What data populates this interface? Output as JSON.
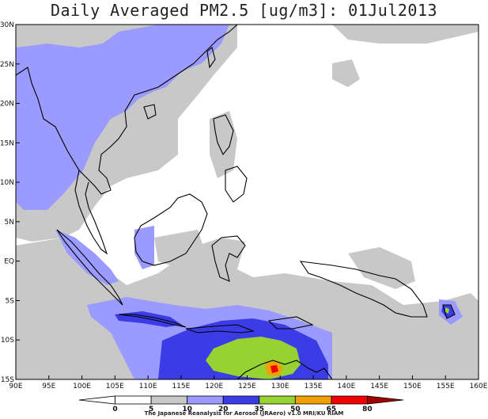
{
  "title": "Daily Averaged PM2.5 [ug/m3]: 01Jul2013",
  "credit": "The Japanese Reanalysis for Aerosol (JRAero) v1.0 MRI/KU RIAM",
  "map": {
    "lon_range": [
      90,
      160
    ],
    "lat_range": [
      -15,
      30
    ],
    "lon_ticks": [
      "90E",
      "95E",
      "100E",
      "105E",
      "110E",
      "115E",
      "120E",
      "125E",
      "130E",
      "135E",
      "140E",
      "145E",
      "150E",
      "155E",
      "160E"
    ],
    "lat_ticks": [
      "30N",
      "25N",
      "20N",
      "15N",
      "10N",
      "5N",
      "EQ",
      "5S",
      "10S",
      "15S"
    ]
  },
  "colorbar": {
    "labels": [
      "0",
      "5",
      "10",
      "20",
      "35",
      "50",
      "65",
      "80"
    ],
    "colors": [
      "#ffffff",
      "#ffffff",
      "#c8c8c8",
      "#9a9aff",
      "#3c3ce6",
      "#96d232",
      "#f0a000",
      "#f00000",
      "#a00000"
    ]
  }
}
